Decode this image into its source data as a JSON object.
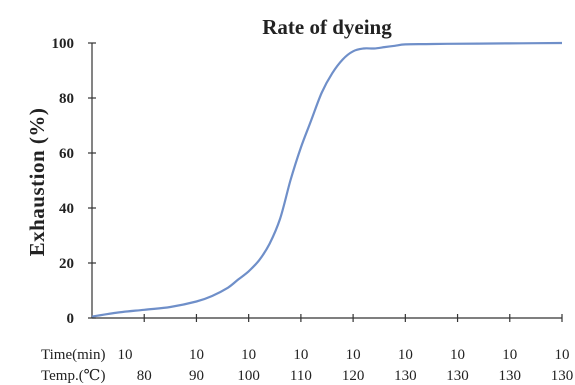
{
  "chart_data": {
    "type": "line",
    "title": "Rate of dyeing",
    "xlabel": "",
    "ylabel": "Exhaustion (%)",
    "ylim": [
      0,
      100
    ],
    "yticks": [
      0,
      20,
      40,
      60,
      80,
      100
    ],
    "grid": false,
    "legend": "none",
    "colors": {
      "line": "#6f8fc9",
      "axis": "#333333",
      "text": "#222222"
    },
    "x_rows": [
      {
        "label": "Time(min)",
        "values": [
          "10",
          "10",
          "10",
          "10",
          "10",
          "10",
          "10",
          "10",
          "10"
        ]
      },
      {
        "label": "Temp.(℃)",
        "values": [
          "80",
          "90",
          "100",
          "110",
          "120",
          "130",
          "130",
          "130",
          "130"
        ]
      }
    ],
    "x": [
      0,
      0.5,
      1,
      1.5,
      2,
      2.3,
      2.6,
      2.8,
      3,
      3.2,
      3.4,
      3.6,
      3.8,
      4,
      4.2,
      4.4,
      4.6,
      4.8,
      5,
      5.2,
      5.4,
      5.6,
      5.8,
      6,
      6.4,
      6.8,
      7.4,
      8.2,
      9
    ],
    "series": [
      {
        "values": [
          0.5,
          2,
          3,
          4,
          6,
          8,
          11,
          14,
          17,
          21,
          27,
          36,
          50,
          62,
          72,
          82,
          89,
          94,
          97,
          98,
          98,
          98.5,
          99,
          99.5,
          99.6,
          99.7,
          99.8,
          99.9,
          100
        ]
      }
    ]
  }
}
